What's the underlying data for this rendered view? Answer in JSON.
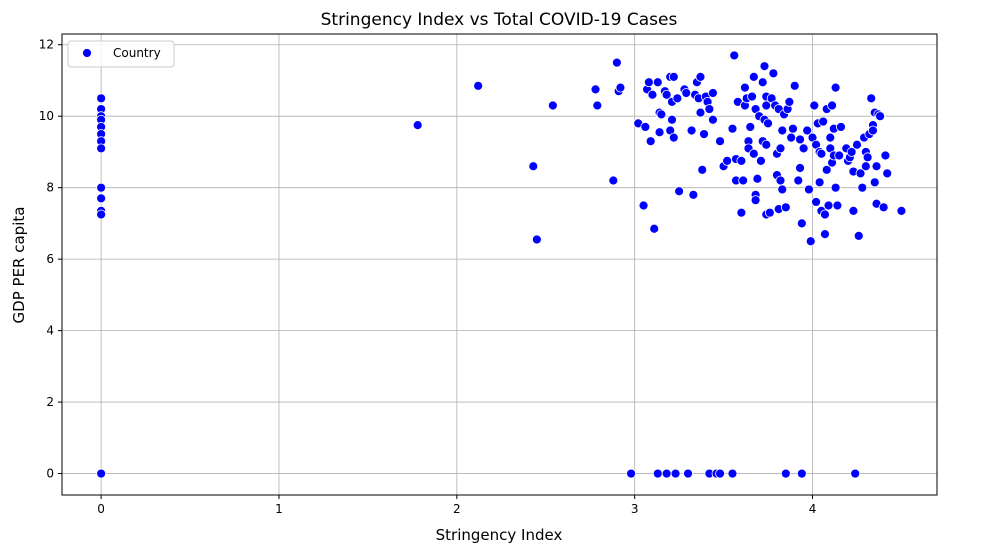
{
  "chart_data": {
    "type": "scatter",
    "title": "Stringency Index vs Total COVID-19 Cases",
    "xlabel": "Stringency Index",
    "ylabel": "GDP PER capita",
    "xlim": [
      -0.22,
      4.7
    ],
    "ylim": [
      -0.6,
      12.3
    ],
    "xticks": [
      0,
      1,
      2,
      3,
      4
    ],
    "yticks": [
      0,
      2,
      4,
      6,
      8,
      10,
      12
    ],
    "grid": true,
    "legend_position": "top-left",
    "point_color": "#0000ff",
    "series": [
      {
        "name": "Country",
        "points": [
          [
            0,
            10.5
          ],
          [
            0,
            10.2
          ],
          [
            0,
            10.0
          ],
          [
            0,
            9.9
          ],
          [
            0,
            9.7
          ],
          [
            0,
            9.5
          ],
          [
            0,
            9.3
          ],
          [
            0,
            9.1
          ],
          [
            0,
            8.0
          ],
          [
            0,
            7.7
          ],
          [
            0,
            7.35
          ],
          [
            0,
            7.25
          ],
          [
            0,
            0
          ],
          [
            1.78,
            9.75
          ],
          [
            2.12,
            10.85
          ],
          [
            2.43,
            8.6
          ],
          [
            2.45,
            6.55
          ],
          [
            2.54,
            10.3
          ],
          [
            2.78,
            10.75
          ],
          [
            2.79,
            10.3
          ],
          [
            2.88,
            8.2
          ],
          [
            2.9,
            11.5
          ],
          [
            2.91,
            10.7
          ],
          [
            2.92,
            10.8
          ],
          [
            2.98,
            0
          ],
          [
            3.02,
            9.8
          ],
          [
            3.05,
            7.5
          ],
          [
            3.06,
            9.7
          ],
          [
            3.07,
            10.75
          ],
          [
            3.08,
            10.95
          ],
          [
            3.09,
            9.3
          ],
          [
            3.1,
            10.6
          ],
          [
            3.11,
            6.85
          ],
          [
            3.13,
            10.95
          ],
          [
            3.14,
            10.1
          ],
          [
            3.14,
            9.55
          ],
          [
            3.13,
            0
          ],
          [
            3.15,
            10.05
          ],
          [
            3.17,
            10.7
          ],
          [
            3.18,
            10.6
          ],
          [
            3.18,
            0
          ],
          [
            3.2,
            11.1
          ],
          [
            3.2,
            9.6
          ],
          [
            3.21,
            9.9
          ],
          [
            3.21,
            10.4
          ],
          [
            3.22,
            11.1
          ],
          [
            3.22,
            9.4
          ],
          [
            3.23,
            0
          ],
          [
            3.24,
            10.5
          ],
          [
            3.25,
            7.9
          ],
          [
            3.28,
            10.75
          ],
          [
            3.29,
            10.65
          ],
          [
            3.3,
            0
          ],
          [
            3.32,
            9.6
          ],
          [
            3.33,
            7.8
          ],
          [
            3.34,
            10.6
          ],
          [
            3.35,
            10.95
          ],
          [
            3.36,
            10.5
          ],
          [
            3.37,
            11.1
          ],
          [
            3.37,
            10.1
          ],
          [
            3.38,
            8.5
          ],
          [
            3.39,
            9.5
          ],
          [
            3.4,
            10.55
          ],
          [
            3.41,
            10.4
          ],
          [
            3.42,
            10.2
          ],
          [
            3.42,
            0
          ],
          [
            3.44,
            10.65
          ],
          [
            3.44,
            9.9
          ],
          [
            3.46,
            0
          ],
          [
            3.48,
            0
          ],
          [
            3.48,
            9.3
          ],
          [
            3.5,
            8.6
          ],
          [
            3.52,
            8.75
          ],
          [
            3.55,
            0
          ],
          [
            3.55,
            9.65
          ],
          [
            3.56,
            11.7
          ],
          [
            3.57,
            8.8
          ],
          [
            3.57,
            8.2
          ],
          [
            3.58,
            10.4
          ],
          [
            3.6,
            8.75
          ],
          [
            3.6,
            7.3
          ],
          [
            3.61,
            8.2
          ],
          [
            3.62,
            10.3
          ],
          [
            3.62,
            10.8
          ],
          [
            3.63,
            10.5
          ],
          [
            3.64,
            9.3
          ],
          [
            3.64,
            9.1
          ],
          [
            3.65,
            9.7
          ],
          [
            3.66,
            10.55
          ],
          [
            3.67,
            8.95
          ],
          [
            3.67,
            11.1
          ],
          [
            3.68,
            7.8
          ],
          [
            3.68,
            7.65
          ],
          [
            3.68,
            10.2
          ],
          [
            3.69,
            8.25
          ],
          [
            3.7,
            10.0
          ],
          [
            3.71,
            8.75
          ],
          [
            3.72,
            10.95
          ],
          [
            3.72,
            9.3
          ],
          [
            3.73,
            9.9
          ],
          [
            3.73,
            11.4
          ],
          [
            3.74,
            10.55
          ],
          [
            3.74,
            10.3
          ],
          [
            3.74,
            9.2
          ],
          [
            3.74,
            7.25
          ],
          [
            3.75,
            9.8
          ],
          [
            3.76,
            7.3
          ],
          [
            3.77,
            10.5
          ],
          [
            3.78,
            11.2
          ],
          [
            3.79,
            10.3
          ],
          [
            3.8,
            8.95
          ],
          [
            3.8,
            8.35
          ],
          [
            3.81,
            10.2
          ],
          [
            3.81,
            7.4
          ],
          [
            3.82,
            8.2
          ],
          [
            3.82,
            9.1
          ],
          [
            3.83,
            7.95
          ],
          [
            3.83,
            9.6
          ],
          [
            3.84,
            10.05
          ],
          [
            3.85,
            7.45
          ],
          [
            3.85,
            0
          ],
          [
            3.86,
            10.2
          ],
          [
            3.87,
            10.4
          ],
          [
            3.88,
            9.4
          ],
          [
            3.89,
            9.65
          ],
          [
            3.9,
            10.85
          ],
          [
            3.92,
            8.2
          ],
          [
            3.93,
            8.55
          ],
          [
            3.93,
            9.35
          ],
          [
            3.94,
            7.0
          ],
          [
            3.94,
            0
          ],
          [
            3.95,
            9.1
          ],
          [
            3.97,
            9.6
          ],
          [
            3.98,
            7.95
          ],
          [
            3.99,
            6.5
          ],
          [
            4.0,
            9.4
          ],
          [
            4.01,
            10.3
          ],
          [
            4.02,
            9.2
          ],
          [
            4.02,
            7.6
          ],
          [
            4.03,
            9.8
          ],
          [
            4.04,
            9.0
          ],
          [
            4.04,
            8.15
          ],
          [
            4.05,
            7.35
          ],
          [
            4.05,
            8.95
          ],
          [
            4.06,
            9.85
          ],
          [
            4.07,
            7.25
          ],
          [
            4.07,
            6.7
          ],
          [
            4.08,
            10.2
          ],
          [
            4.08,
            8.5
          ],
          [
            4.09,
            7.5
          ],
          [
            4.1,
            9.4
          ],
          [
            4.1,
            9.1
          ],
          [
            4.11,
            8.7
          ],
          [
            4.11,
            10.3
          ],
          [
            4.12,
            9.65
          ],
          [
            4.12,
            8.9
          ],
          [
            4.13,
            10.8
          ],
          [
            4.13,
            8.0
          ],
          [
            4.14,
            7.5
          ],
          [
            4.15,
            8.9
          ],
          [
            4.16,
            9.7
          ],
          [
            4.19,
            9.1
          ],
          [
            4.2,
            8.75
          ],
          [
            4.21,
            8.85
          ],
          [
            4.22,
            9.0
          ],
          [
            4.23,
            7.35
          ],
          [
            4.23,
            8.45
          ],
          [
            4.24,
            0
          ],
          [
            4.25,
            9.2
          ],
          [
            4.26,
            6.65
          ],
          [
            4.27,
            8.4
          ],
          [
            4.28,
            8.0
          ],
          [
            4.29,
            9.4
          ],
          [
            4.3,
            9.0
          ],
          [
            4.3,
            8.6
          ],
          [
            4.31,
            8.85
          ],
          [
            4.32,
            9.5
          ],
          [
            4.33,
            10.5
          ],
          [
            4.34,
            9.75
          ],
          [
            4.34,
            9.6
          ],
          [
            4.35,
            8.15
          ],
          [
            4.35,
            10.1
          ],
          [
            4.36,
            7.55
          ],
          [
            4.36,
            8.6
          ],
          [
            4.37,
            10.05
          ],
          [
            4.38,
            10.0
          ],
          [
            4.4,
            7.45
          ],
          [
            4.41,
            8.9
          ],
          [
            4.42,
            8.4
          ],
          [
            4.5,
            7.35
          ]
        ]
      }
    ]
  }
}
